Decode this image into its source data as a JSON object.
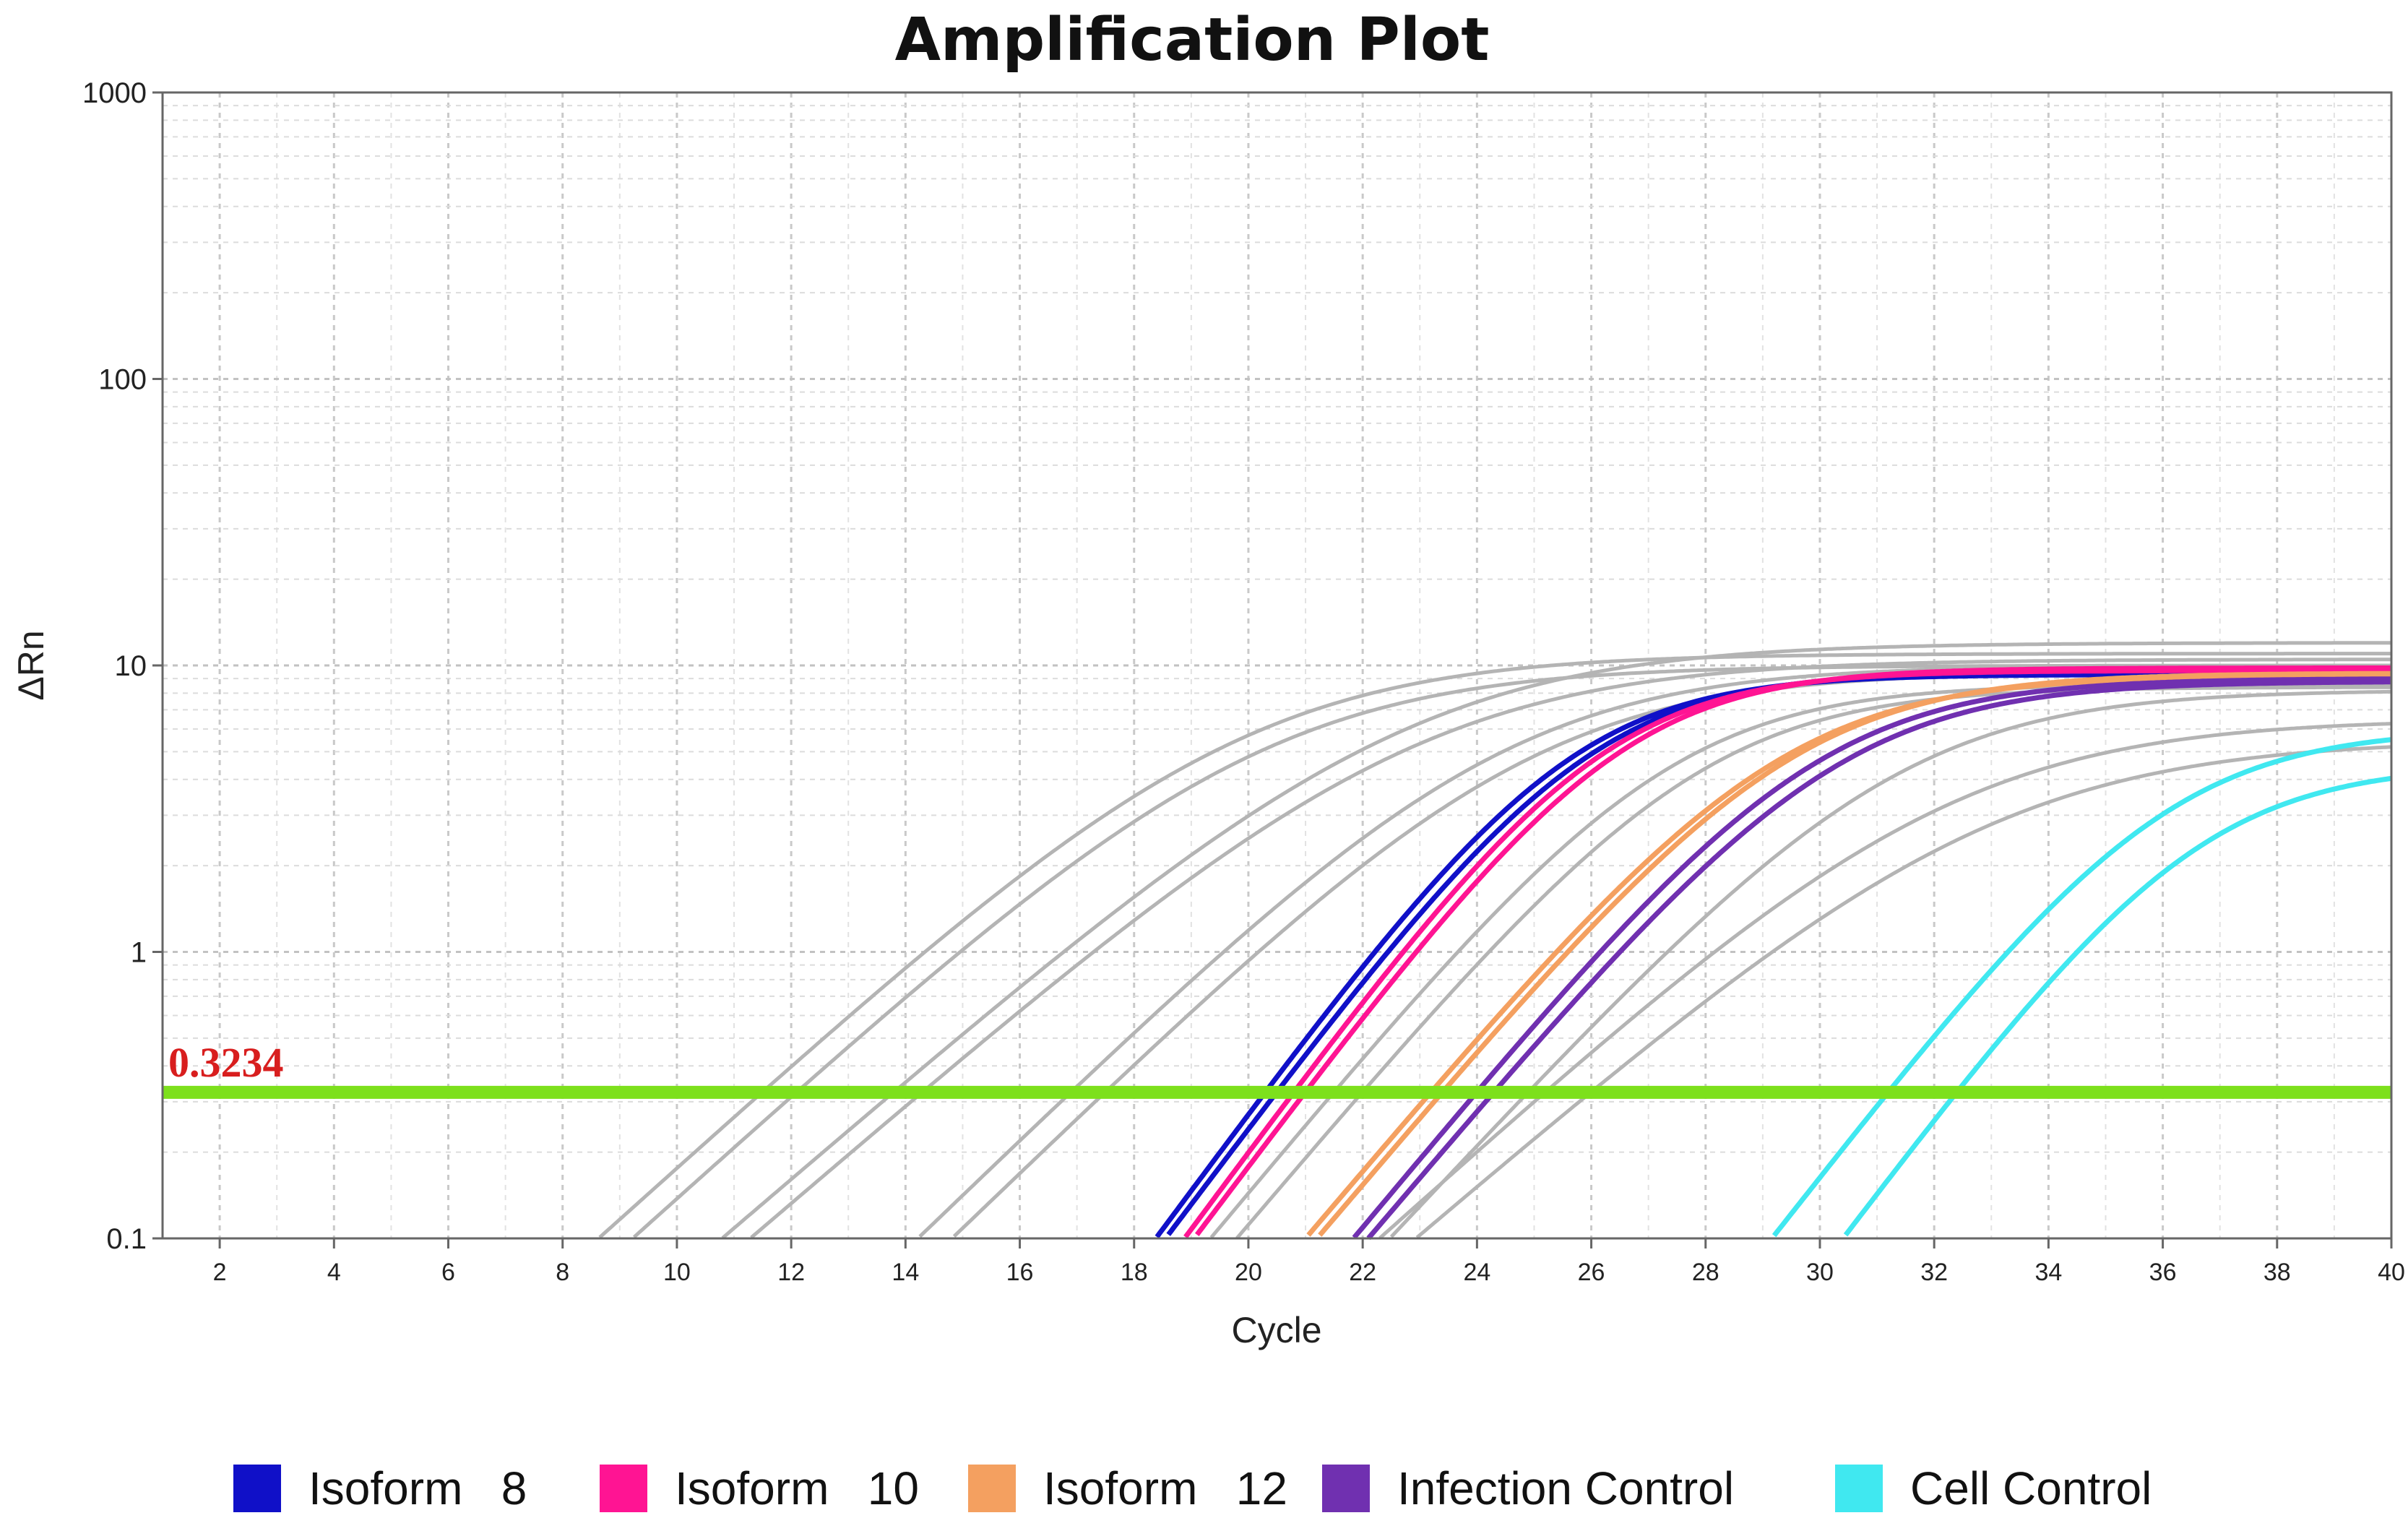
{
  "chart_data": {
    "type": "line",
    "title": "Amplification Plot",
    "xlabel": "Cycle",
    "ylabel": "ΔRn",
    "xlim": [
      1,
      40
    ],
    "ylim": [
      0.1,
      1000
    ],
    "yscale": "log",
    "x_ticks": [
      "2",
      "4",
      "6",
      "8",
      "10",
      "12",
      "14",
      "16",
      "18",
      "20",
      "22",
      "24",
      "26",
      "28",
      "30",
      "32",
      "34",
      "36",
      "38",
      "40"
    ],
    "y_ticks": [
      "0.1",
      "1",
      "10",
      "100",
      "1000"
    ],
    "grid": true,
    "threshold": {
      "value": 0.3234,
      "label": "0.3234",
      "color": "#7de01c",
      "label_color": "#d81e1e"
    },
    "legend": "bottom",
    "series": [
      {
        "name": "Isoform   8",
        "color": "#1010c8",
        "curves": [
          {
            "ct": 20.3,
            "plateau": 9.3,
            "k": 0.63
          },
          {
            "ct": 20.5,
            "plateau": 9.5,
            "k": 0.62
          }
        ]
      },
      {
        "name": "Isoform   10",
        "color": "#ff1493",
        "curves": [
          {
            "ct": 20.8,
            "plateau": 9.6,
            "k": 0.63
          },
          {
            "ct": 21.0,
            "plateau": 9.8,
            "k": 0.62
          }
        ]
      },
      {
        "name": "Isoform   12",
        "color": "#f4a060",
        "curves": [
          {
            "ct": 23.2,
            "plateau": 9.2,
            "k": 0.55
          },
          {
            "ct": 23.4,
            "plateau": 9.4,
            "k": 0.55
          }
        ]
      },
      {
        "name": "Infection Control",
        "color": "#7030b0",
        "curves": [
          {
            "ct": 24.0,
            "plateau": 9.0,
            "k": 0.56
          },
          {
            "ct": 24.3,
            "plateau": 8.8,
            "k": 0.55
          }
        ]
      },
      {
        "name": "Cell Control",
        "color": "#40e8f0",
        "curves": [
          {
            "ct": 31.2,
            "plateau": 6.0,
            "k": 0.6
          },
          {
            "ct": 32.4,
            "plateau": 4.5,
            "k": 0.62
          }
        ]
      }
    ],
    "background_curves": [
      {
        "ct": 11.5,
        "plateau": 11.0,
        "k": 0.42
      },
      {
        "ct": 12.1,
        "plateau": 10.0,
        "k": 0.42
      },
      {
        "ct": 13.8,
        "plateau": 12.0,
        "k": 0.4
      },
      {
        "ct": 14.3,
        "plateau": 10.5,
        "k": 0.4
      },
      {
        "ct": 16.9,
        "plateau": 10.0,
        "k": 0.45
      },
      {
        "ct": 17.5,
        "plateau": 9.5,
        "k": 0.45
      },
      {
        "ct": 21.5,
        "plateau": 8.6,
        "k": 0.56
      },
      {
        "ct": 22.0,
        "plateau": 8.4,
        "k": 0.55
      },
      {
        "ct": 24.9,
        "plateau": 8.2,
        "k": 0.5
      },
      {
        "ct": 25.2,
        "plateau": 6.5,
        "k": 0.42
      },
      {
        "ct": 26.0,
        "plateau": 5.5,
        "k": 0.4
      }
    ],
    "background_color": "#b4b4b4"
  }
}
